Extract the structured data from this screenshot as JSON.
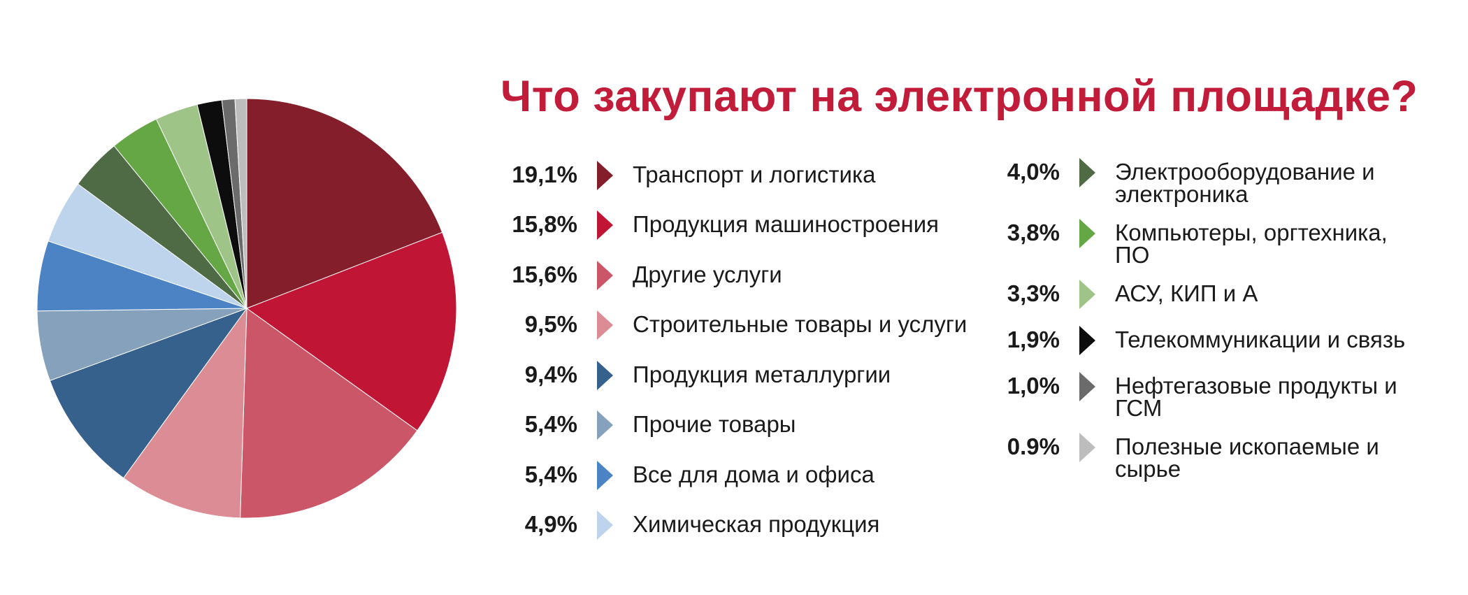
{
  "title": "Что закупают на электронной площадке?",
  "chart_data": {
    "type": "pie",
    "title": "Что закупают на электронной площадке?",
    "slices": [
      {
        "label": "Транспорт и логистика",
        "display": "19,1%",
        "value": 19.1,
        "color": "#841e2a"
      },
      {
        "label": "Продукция машиностроения",
        "display": "15,8%",
        "value": 15.8,
        "color": "#c11535"
      },
      {
        "label": "Другие услуги",
        "display": "15,6%",
        "value": 15.6,
        "color": "#cb5667"
      },
      {
        "label": "Строительные товары и услуги",
        "display": "9,5%",
        "value": 9.5,
        "color": "#dc8c94"
      },
      {
        "label": "Продукция металлургии",
        "display": "9,4%",
        "value": 9.4,
        "color": "#36618c"
      },
      {
        "label": "Прочие товары",
        "display": "5,4%",
        "value": 5.4,
        "color": "#86a1bb"
      },
      {
        "label": "Все для дома и офиса",
        "display": "5,4%",
        "value": 5.4,
        "color": "#4c83c5"
      },
      {
        "label": "Химическая продукция",
        "display": "4,9%",
        "value": 4.9,
        "color": "#bed4ec"
      },
      {
        "label": "Электрооборудование и электроника",
        "display": "4,0%",
        "value": 4.0,
        "color": "#4f6b45"
      },
      {
        "label": "Компьютеры, оргтехника, ПО",
        "display": "3,8%",
        "value": 3.8,
        "color": "#66a745"
      },
      {
        "label": "АСУ, КИП и А",
        "display": "3,3%",
        "value": 3.3,
        "color": "#9fc488"
      },
      {
        "label": "Телекоммуникации и связь",
        "display": "1,9%",
        "value": 1.9,
        "color": "#0d0d0d"
      },
      {
        "label": "Нефтегазовые продукты и ГСМ",
        "display": "1,0%",
        "value": 1.0,
        "color": "#6b6b6b"
      },
      {
        "label": "Полезные ископаемые и сырье",
        "display": "0.9%",
        "value": 0.9,
        "color": "#bdbdbd"
      }
    ]
  }
}
